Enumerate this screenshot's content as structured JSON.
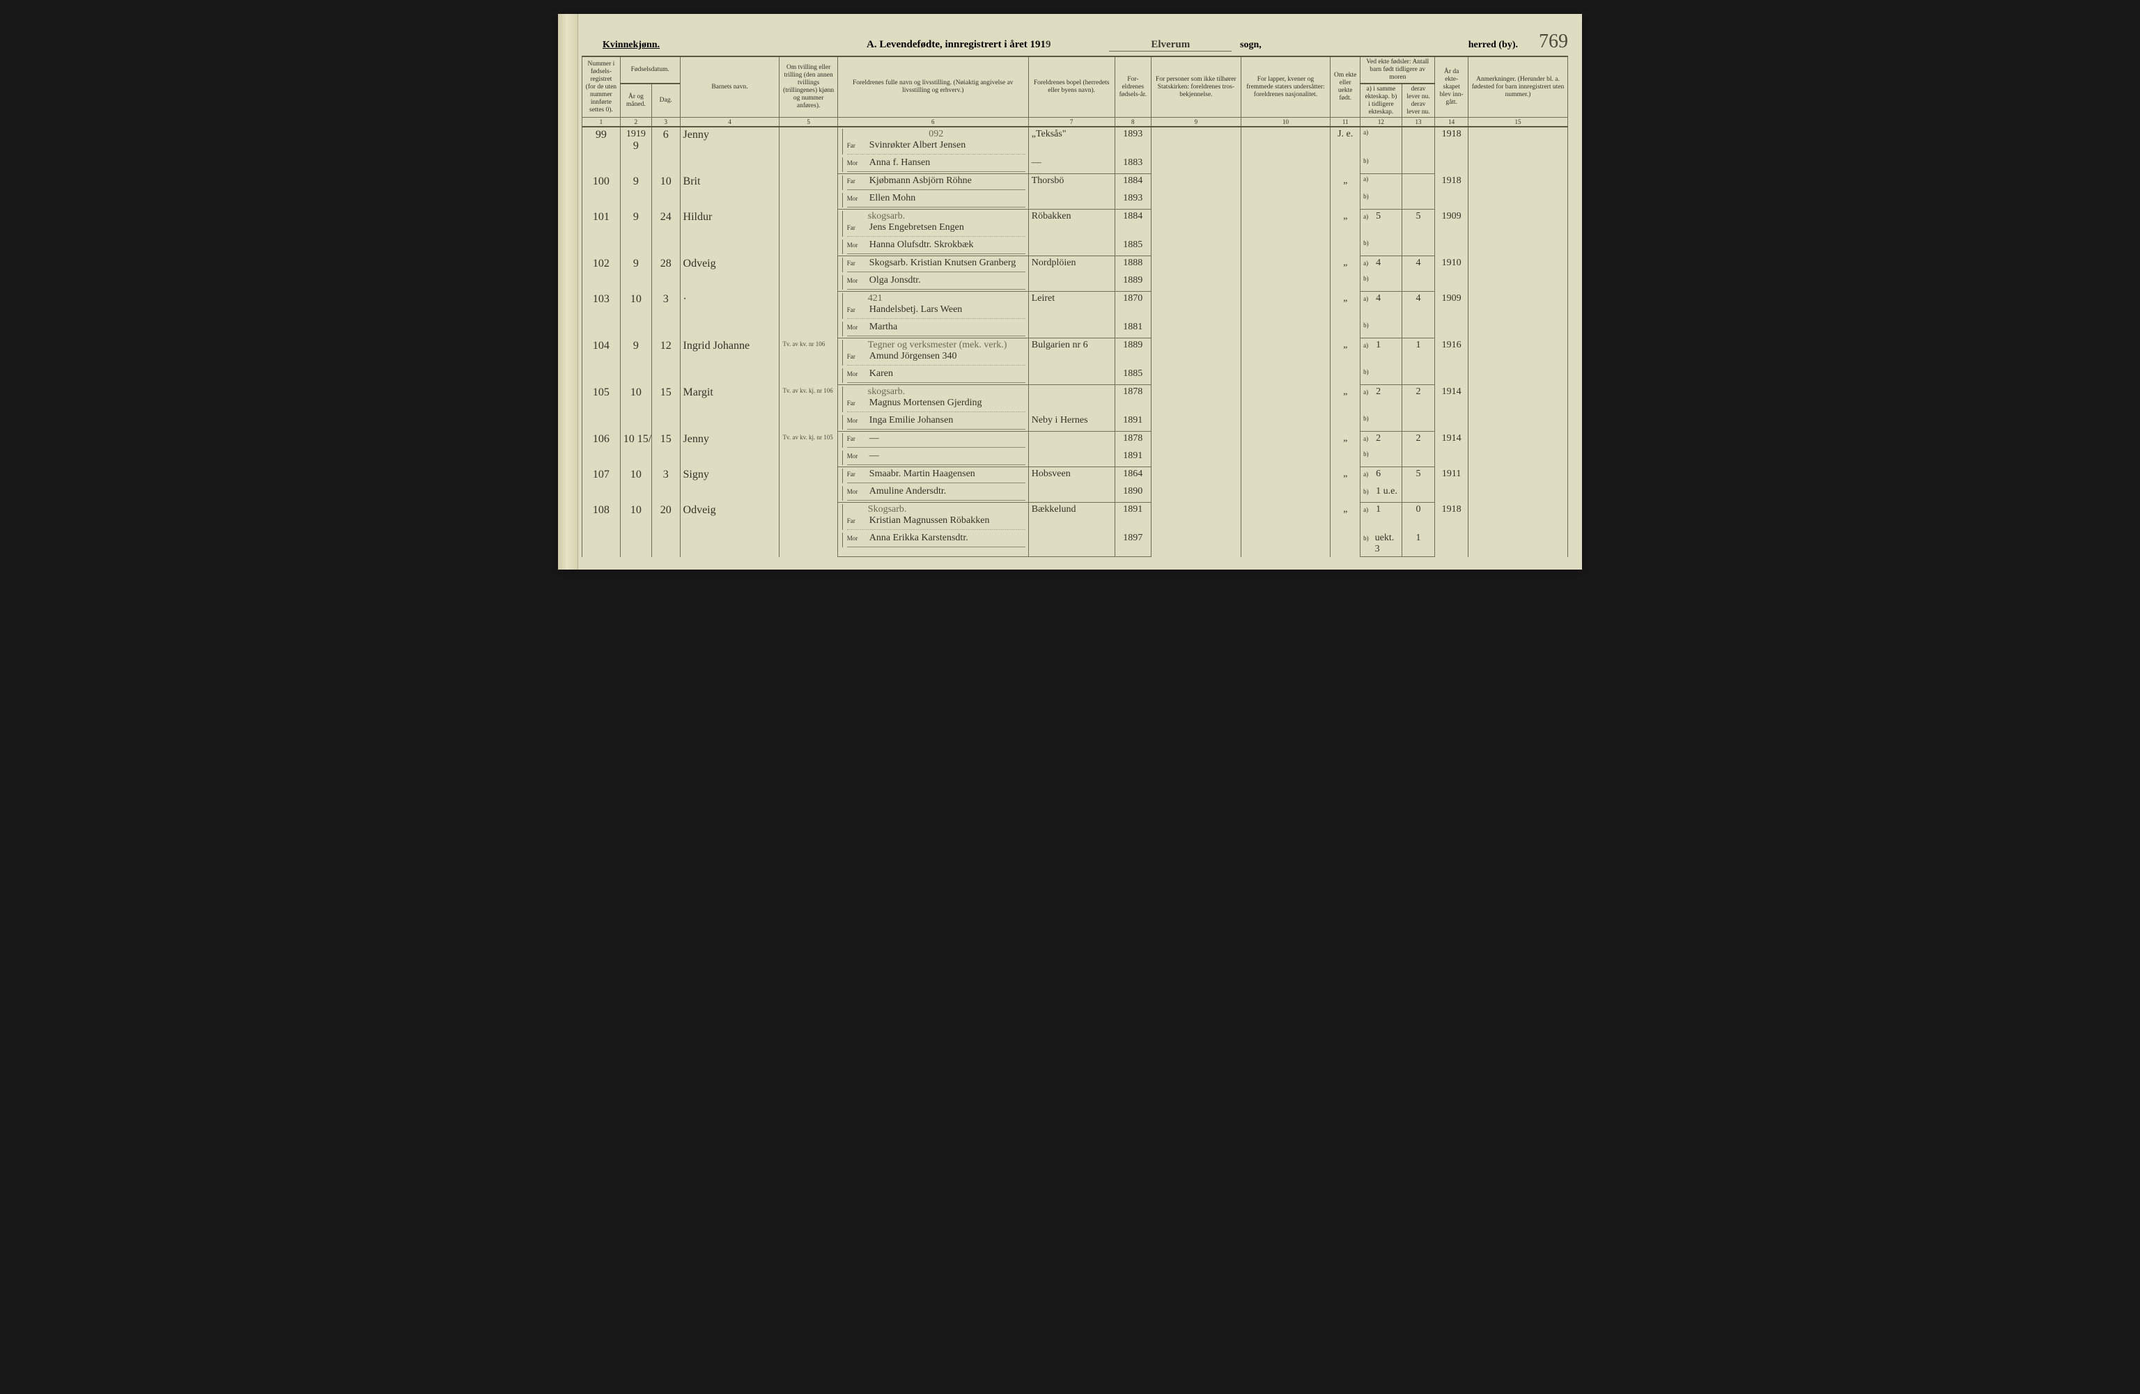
{
  "page": {
    "gender_heading": "Kvinnekjønn.",
    "title_prefix": "A.  Levendefødte, innregistrert i året 191",
    "year_suffix": "9",
    "region": "Elverum",
    "sogn_label": "sogn,",
    "herred_label": "herred (by).",
    "page_number": "769"
  },
  "headers": {
    "c1": "Nummer i fødsels-registret (for de uten nummer innførte settes 0).",
    "c2_group": "Fødselsdatum.",
    "c2": "År og måned.",
    "c3": "Dag.",
    "c4": "Barnets navn.",
    "c5": "Om tvilling eller trilling (den annen tvillings (trillingenes) kjønn og nummer anføres).",
    "c6": "Foreldrenes fulle navn og livsstilling. (Nøiaktig angivelse av livsstilling og erhverv.)",
    "c7": "Foreldrenes bopel (herredets eller byens navn).",
    "c8": "For-eldrenes fødsels-år.",
    "c9": "For personer som ikke tilhører Statskirken: foreldrenes tros-bekjennelse.",
    "c10": "For lapper, kvener og fremmede staters undersåtter: foreldrenes nasjonalitet.",
    "c11": "Om ekte eller uekte født.",
    "c12_13_group": "Ved ekte fødsler: Antall barn født tidligere av moren",
    "c12": "a) i samme ekteskap.  b) i tidligere ekteskap.",
    "c13": "derav lever nu.  derav lever nu.",
    "c14": "År da ekte-skapet blev inn-gått.",
    "c15": "Anmerkninger. (Herunder bl. a. fødested for barn innregistrert uten nummer.)"
  },
  "colnums": [
    "1",
    "2",
    "3",
    "4",
    "5",
    "6",
    "7",
    "8",
    "9",
    "10",
    "11",
    "12",
    "13",
    "14",
    "15"
  ],
  "note_above_row1": "092",
  "rows": [
    {
      "num": "99",
      "year": "1919",
      "month": "9",
      "day": "6",
      "child": "Jenny",
      "twin": "",
      "far_pre": "",
      "far": "Svinrøkter Albert Jensen",
      "mor": "Anna f. Hansen",
      "residence_far": "„Teksås\"",
      "residence_mor": "—",
      "far_year": "1893",
      "mor_year": "1883",
      "ekte": "J. e.",
      "a_same": "",
      "a_lever": "",
      "b_prev": "",
      "b_lever": "",
      "marr_year": "1918",
      "remarks": ""
    },
    {
      "num": "100",
      "year": "",
      "month": "9",
      "day": "10",
      "child": "Brit",
      "twin": "",
      "far_pre": "",
      "far": "Kjøbmann Asbjörn Röhne",
      "mor": "Ellen Mohn",
      "residence_far": "Thorsbö",
      "residence_mor": "",
      "far_year": "1884",
      "mor_year": "1893",
      "ekte": "„",
      "a_same": "",
      "a_lever": "",
      "b_prev": "",
      "b_lever": "",
      "marr_year": "1918",
      "remarks": ""
    },
    {
      "num": "101",
      "year": "",
      "month": "9",
      "day": "24",
      "child": "Hildur",
      "twin": "",
      "far_pre": "skogsarb.",
      "far": "Jens Engebretsen Engen",
      "mor": "Hanna Olufsdtr. Skrokbæk",
      "residence_far": "Röbakken",
      "residence_mor": "",
      "far_year": "1884",
      "mor_year": "1885",
      "ekte": "„",
      "a_same": "5",
      "a_lever": "5",
      "b_prev": "",
      "b_lever": "",
      "marr_year": "1909",
      "remarks": ""
    },
    {
      "num": "102",
      "year": "",
      "month": "9",
      "day": "28",
      "child": "Odveig",
      "twin": "",
      "far_pre": "",
      "far": "Skogsarb. Kristian Knutsen Granberg",
      "mor": "Olga Jonsdtr.",
      "residence_far": "Nordplöien",
      "residence_mor": "",
      "far_year": "1888",
      "mor_year": "1889",
      "ekte": "„",
      "a_same": "4",
      "a_lever": "4",
      "b_prev": "",
      "b_lever": "",
      "marr_year": "1910",
      "remarks": ""
    },
    {
      "num": "103",
      "year": "",
      "month": "10",
      "day": "3",
      "child": "·",
      "twin": "",
      "far_pre": "421",
      "far": "Handelsbetj. Lars Ween",
      "mor": "Martha",
      "residence_far": "Leiret",
      "residence_mor": "",
      "far_year": "1870",
      "mor_year": "1881",
      "ekte": "„",
      "a_same": "4",
      "a_lever": "4",
      "b_prev": "",
      "b_lever": "",
      "marr_year": "1909",
      "remarks": ""
    },
    {
      "num": "104",
      "year": "",
      "month": "9",
      "day": "12",
      "child": "Ingrid Johanne",
      "twin": "Tv. av kv. nr 106",
      "far_pre": "Tegner og verksmester (mek. verk.)",
      "far": "Amund Jörgensen  340",
      "mor": "Karen",
      "residence_far": "Bulgarien nr 6",
      "residence_mor": "",
      "far_year": "1889",
      "mor_year": "1885",
      "ekte": "„",
      "a_same": "1",
      "a_lever": "1",
      "b_prev": "",
      "b_lever": "",
      "marr_year": "1916",
      "remarks": ""
    },
    {
      "num": "105",
      "year": "",
      "month": "10",
      "day": "15",
      "child": "Margit",
      "twin": "Tv. av kv. kj. nr 106",
      "far_pre": "skogsarb.",
      "far": "Magnus Mortensen Gjerding",
      "mor": "Inga Emilie Johansen",
      "residence_far": "",
      "residence_mor": "Neby i Hernes",
      "far_year": "1878",
      "mor_year": "1891",
      "ekte": "„",
      "a_same": "2",
      "a_lever": "2",
      "b_prev": "",
      "b_lever": "",
      "marr_year": "1914",
      "remarks": ""
    },
    {
      "num": "106",
      "year": "",
      "month": "10   15/",
      "day": "15",
      "child": "Jenny",
      "twin": "Tv. av kv. kj. nr 105",
      "far_pre": "",
      "far": "—",
      "mor": "—",
      "residence_far": "",
      "residence_mor": "",
      "far_year": "1878",
      "mor_year": "1891",
      "ekte": "„",
      "a_same": "2",
      "a_lever": "2",
      "b_prev": "",
      "b_lever": "",
      "marr_year": "1914",
      "remarks": ""
    },
    {
      "num": "107",
      "year": "",
      "month": "10",
      "day": "3",
      "child": "Signy",
      "twin": "",
      "far_pre": "",
      "far": "Smaabr. Martin Haagensen",
      "mor": "Amuline Andersdtr.",
      "residence_far": "Hobsveen",
      "residence_mor": "",
      "far_year": "1864",
      "mor_year": "1890",
      "ekte": "„",
      "a_same": "6",
      "a_lever": "5",
      "b_prev": "1 u.e.",
      "b_lever": "",
      "marr_year": "1911",
      "remarks": ""
    },
    {
      "num": "108",
      "year": "",
      "month": "10",
      "day": "20",
      "child": "Odveig",
      "twin": "",
      "far_pre": "Skogsarb.",
      "far": "Kristian Magnussen Röbakken",
      "mor": "Anna Erikka Karstensdtr.",
      "residence_far": "Bækkelund",
      "residence_mor": "",
      "far_year": "1891",
      "mor_year": "1897",
      "ekte": "„",
      "a_same": "1",
      "a_lever": "0",
      "b_prev": "uekt. 3",
      "b_lever": "1",
      "marr_year": "1918",
      "remarks": ""
    }
  ]
}
